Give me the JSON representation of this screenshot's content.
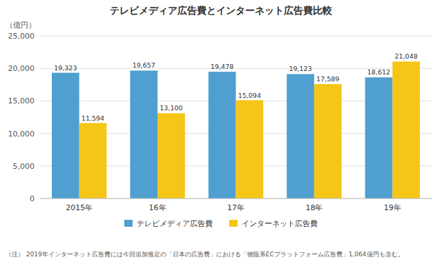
{
  "chart_data": {
    "type": "bar",
    "title": "テレビメディア広告費とインターネット広告費比較",
    "ylabel": "（億円）",
    "categories": [
      "2015年",
      "16年",
      "17年",
      "18年",
      "19年"
    ],
    "series": [
      {
        "name": "テレビメディア広告費",
        "color": "#4F9FD0",
        "values": [
          19323,
          19657,
          19478,
          19123,
          18612
        ],
        "value_labels": [
          "19,323",
          "19,657",
          "19,478",
          "19,123",
          "18,612"
        ]
      },
      {
        "name": "インターネット広告費",
        "color": "#F5C518",
        "values": [
          11594,
          13100,
          15094,
          17589,
          21048
        ],
        "value_labels": [
          "11,594",
          "13,100",
          "15,094",
          "17,589",
          "21,048"
        ]
      }
    ],
    "ylim": [
      0,
      25000
    ],
    "yticks": [
      0,
      {
        "value": 5000,
        "label": "5,000"
      },
      {
        "value": 10000,
        "label": "10,000"
      },
      {
        "value": 15000,
        "label": "15,000"
      },
      {
        "value": 20000,
        "label": "20,000"
      },
      {
        "value": 25000,
        "label": "25,000"
      }
    ],
    "grid": true,
    "legend": "bottom",
    "data_labels": true,
    "footnote": "（注） 2019年インターネット広告費には今回追加推定の「日本の広告費」における「物販系ECプラットフォーム広告費」1,064億円も含む。"
  }
}
